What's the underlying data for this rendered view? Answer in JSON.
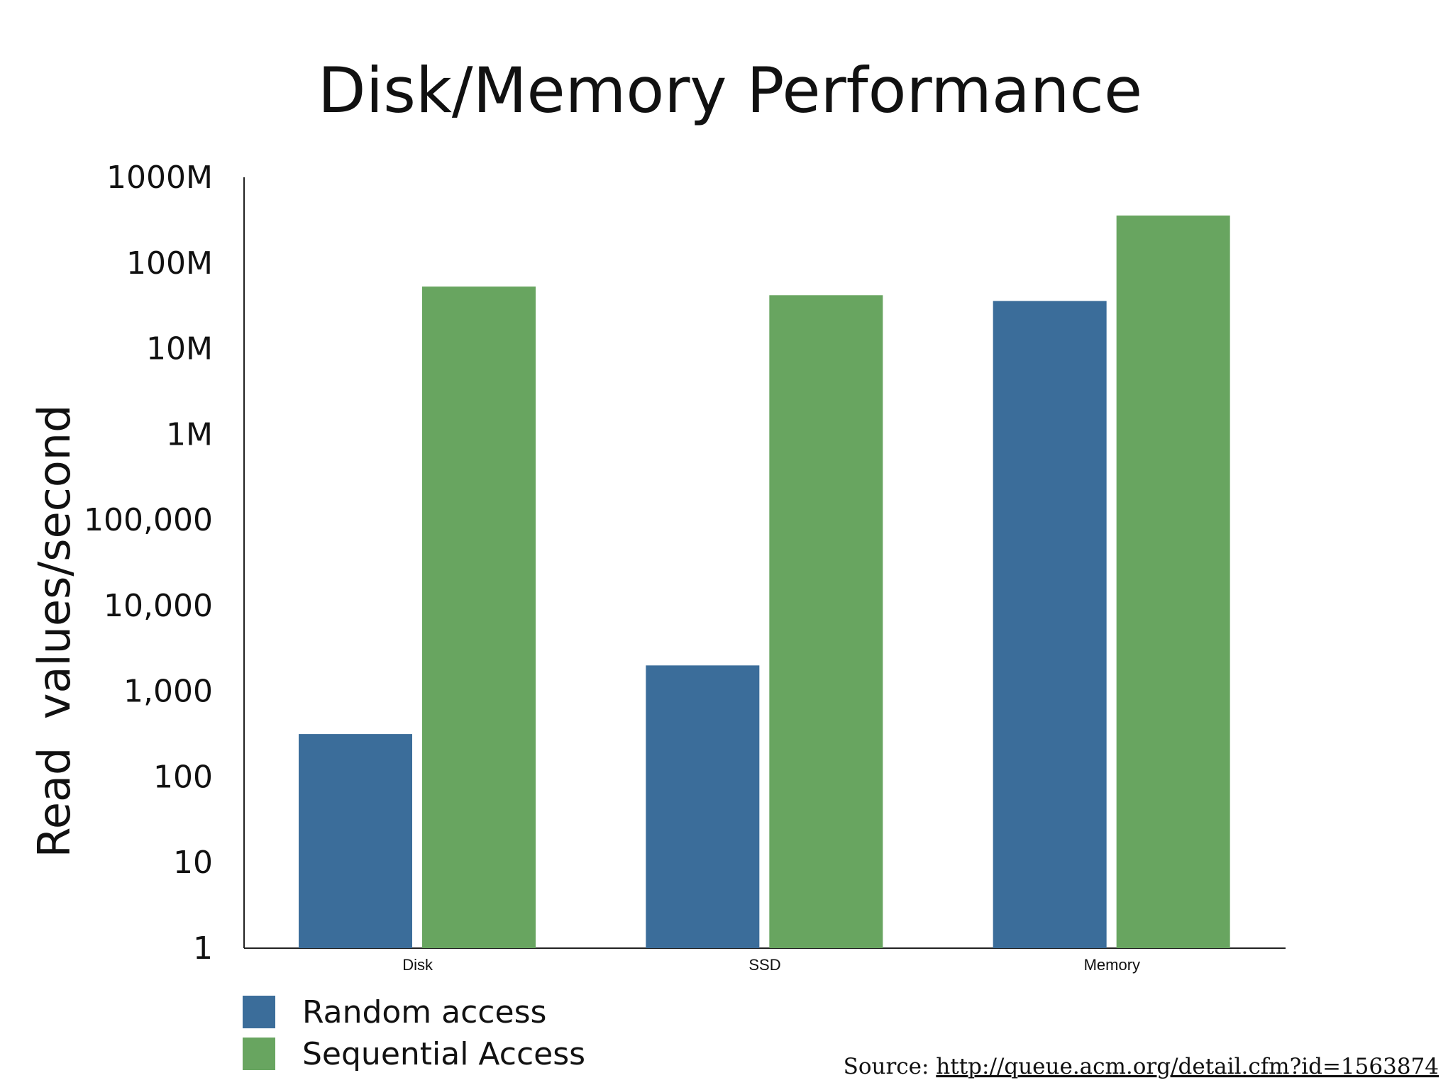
{
  "chart_data": {
    "type": "bar",
    "title": "Disk/Memory Performance",
    "xlabel": "",
    "ylabel": "Read  values/second",
    "yscale": "log",
    "ylim": [
      1,
      1000000000
    ],
    "yticks": [
      {
        "value": 1,
        "label": "1"
      },
      {
        "value": 10,
        "label": "10"
      },
      {
        "value": 100,
        "label": "100"
      },
      {
        "value": 1000,
        "label": "1,000"
      },
      {
        "value": 10000,
        "label": "10,000"
      },
      {
        "value": 100000,
        "label": "100,000"
      },
      {
        "value": 1000000,
        "label": "1M"
      },
      {
        "value": 10000000,
        "label": "10M"
      },
      {
        "value": 100000000,
        "label": "100M"
      },
      {
        "value": 1000000000,
        "label": "1000M"
      }
    ],
    "categories": [
      "Disk",
      "SSD",
      "Memory"
    ],
    "series": [
      {
        "name": "Random access",
        "color": "#3b6d9a",
        "values": [
          316,
          2000,
          36000000
        ]
      },
      {
        "name": "Sequential Access",
        "color": "#68a560",
        "values": [
          53000000,
          42000000,
          358000000
        ]
      }
    ],
    "grid": false,
    "legend_position": "bottom-left"
  },
  "source": {
    "prefix": "Source: ",
    "link_text": "http://queue.acm.org/detail.cfm?id=1563874"
  }
}
